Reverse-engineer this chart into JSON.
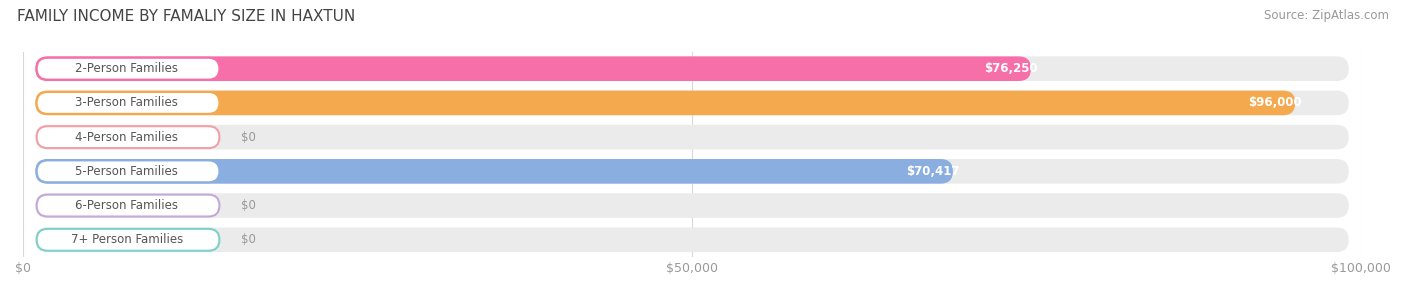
{
  "title": "FAMILY INCOME BY FAMALIY SIZE IN HAXTUN",
  "source": "Source: ZipAtlas.com",
  "categories": [
    "2-Person Families",
    "3-Person Families",
    "4-Person Families",
    "5-Person Families",
    "6-Person Families",
    "7+ Person Families"
  ],
  "values": [
    76250,
    96000,
    0,
    70417,
    0,
    0
  ],
  "bar_colors": [
    "#f76fa8",
    "#f5a94e",
    "#f0a0a8",
    "#8aaee0",
    "#c4a8d8",
    "#7dd0cc"
  ],
  "bg_color": "#ffffff",
  "bar_bg_color": "#ebebeb",
  "xlim": [
    0,
    100000
  ],
  "xticks": [
    0,
    50000,
    100000
  ],
  "xtick_labels": [
    "$0",
    "$50,000",
    "$100,000"
  ],
  "value_labels": [
    "$76,250",
    "$96,000",
    "$0",
    "$70,417",
    "$0",
    "$0"
  ],
  "title_fontsize": 11,
  "source_fontsize": 8.5,
  "label_fontsize": 8.5,
  "value_fontsize": 8.5
}
